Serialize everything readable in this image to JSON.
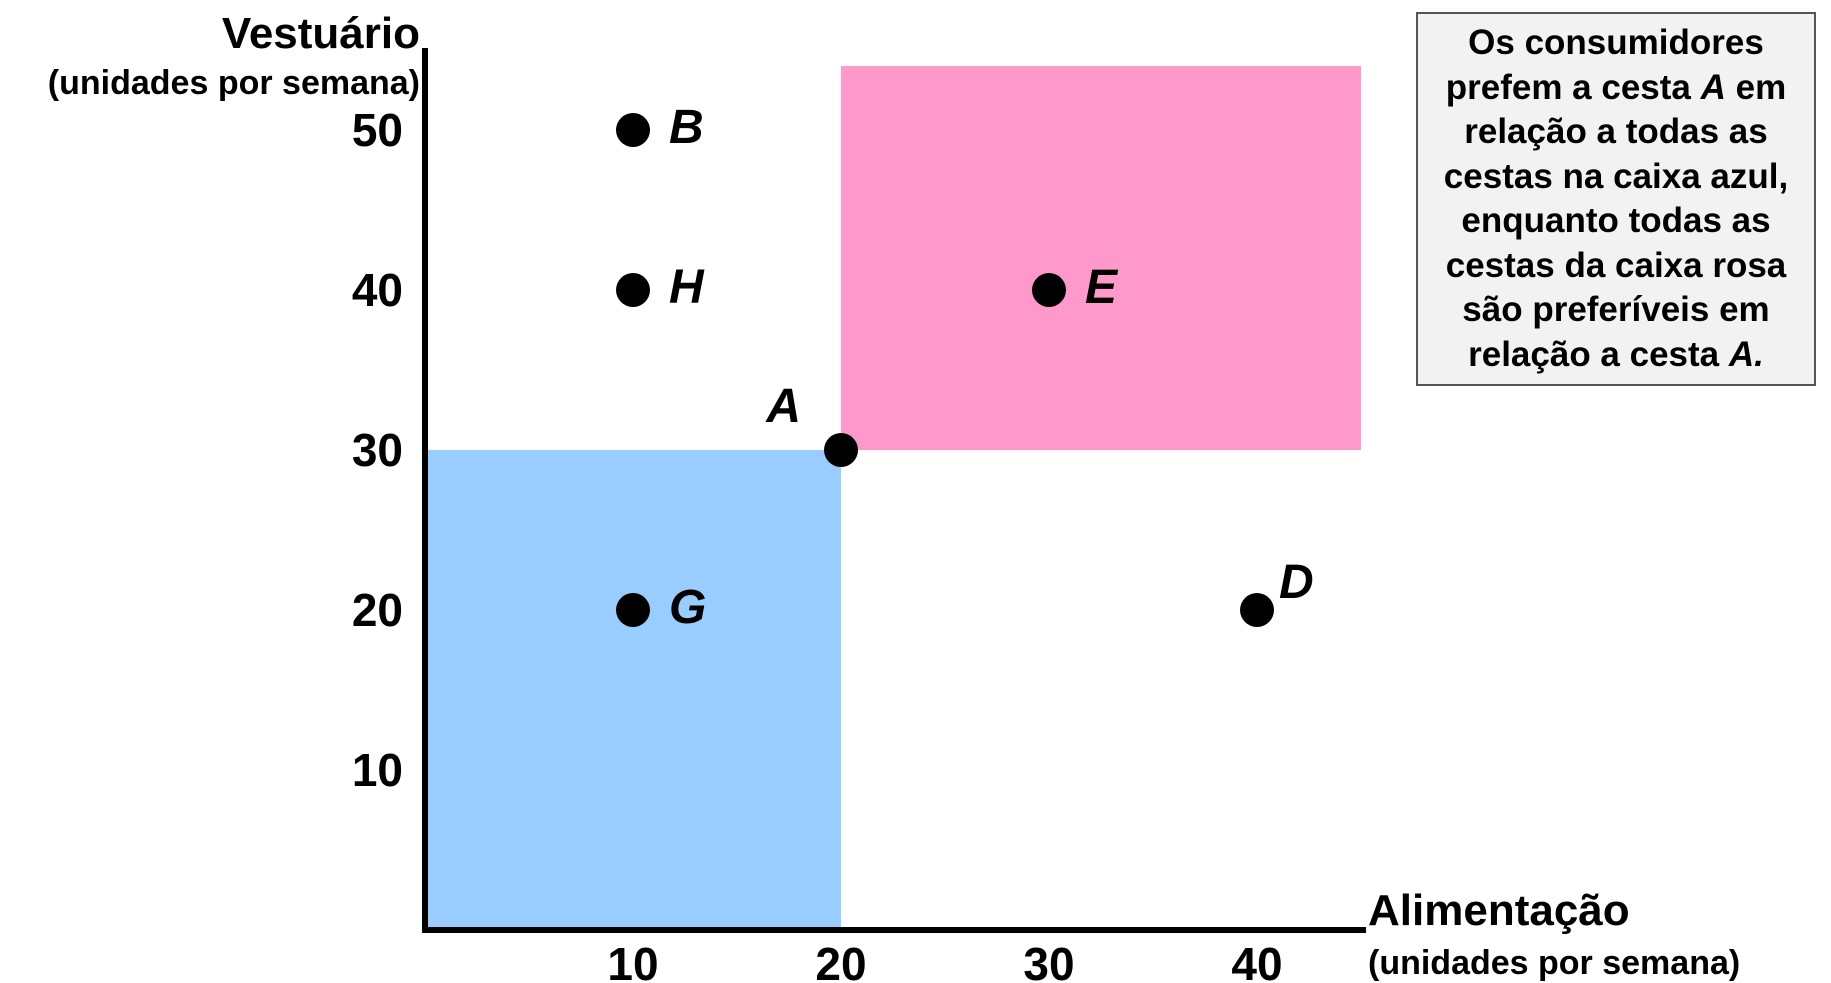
{
  "chart_data": {
    "type": "scatter",
    "title": "",
    "ylabel": "Vestuário",
    "ylabel_unit": "(unidades por semana)",
    "xlabel": "Alimentação",
    "xlabel_unit": "(unidades por semana)",
    "xlim": [
      0,
      45
    ],
    "ylim": [
      0,
      54
    ],
    "x_ticks": [
      10,
      20,
      30,
      40
    ],
    "y_ticks": [
      10,
      20,
      30,
      40,
      50
    ],
    "grid": false,
    "points": [
      {
        "label": "A",
        "x": 20,
        "y": 30
      },
      {
        "label": "B",
        "x": 10,
        "y": 50
      },
      {
        "label": "D",
        "x": 40,
        "y": 20
      },
      {
        "label": "E",
        "x": 30,
        "y": 40
      },
      {
        "label": "G",
        "x": 10,
        "y": 20
      },
      {
        "label": "H",
        "x": 10,
        "y": 40
      }
    ],
    "regions": [
      {
        "name": "caixa azul",
        "color": "#99ccff",
        "x": [
          0,
          20
        ],
        "y": [
          0,
          30
        ]
      },
      {
        "name": "caixa rosa",
        "color": "#ff99cc",
        "x": [
          20,
          45
        ],
        "y": [
          30,
          54
        ]
      }
    ],
    "point_color": "#000000",
    "axis_color": "#000000"
  },
  "annotation": {
    "lines": [
      [
        {
          "t": "Os consumidores"
        }
      ],
      [
        {
          "t": "prefem a cesta "
        },
        {
          "t": "A",
          "i": true
        },
        {
          "t": " em"
        }
      ],
      [
        {
          "t": "relação a todas as"
        }
      ],
      [
        {
          "t": "cestas na caixa azul,"
        }
      ],
      [
        {
          "t": "enquanto todas as"
        }
      ],
      [
        {
          "t": "cestas da caixa rosa"
        }
      ],
      [
        {
          "t": "são preferíveis em"
        }
      ],
      [
        {
          "t": "relação a cesta "
        },
        {
          "t": "A.",
          "i": true
        }
      ]
    ]
  }
}
